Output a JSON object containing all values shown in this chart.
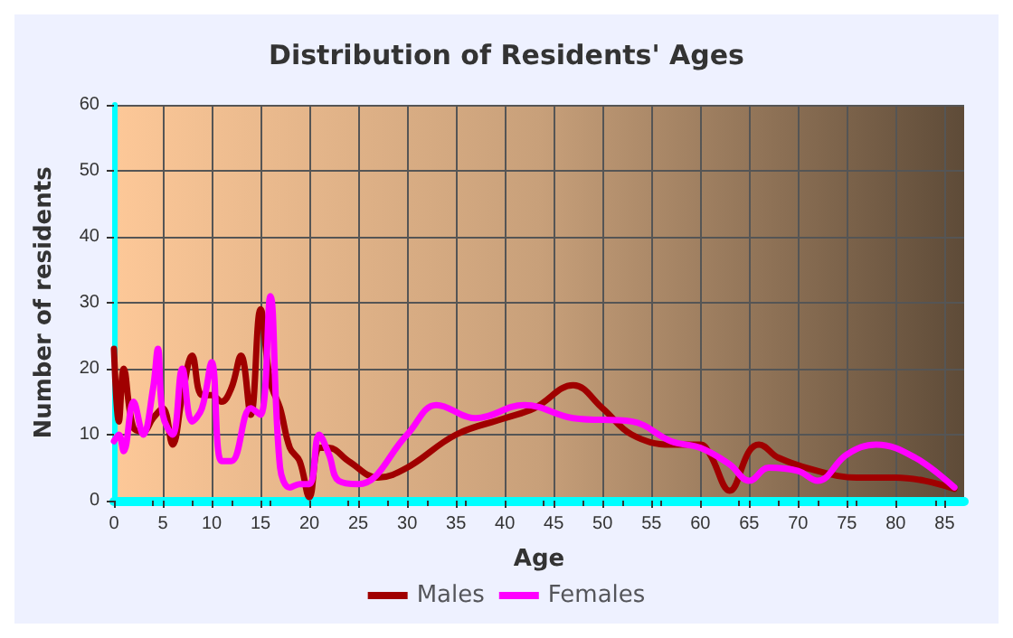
{
  "chart_data": {
    "type": "line",
    "title": "Distribution of Residents' Ages",
    "xlabel": "Age",
    "ylabel": "Number of residents",
    "xlim": [
      0,
      87
    ],
    "xticks": [
      0,
      5,
      10,
      15,
      20,
      25,
      30,
      35,
      40,
      45,
      50,
      55,
      60,
      65,
      70,
      75,
      80,
      85
    ],
    "ylim": [
      0,
      60
    ],
    "yticks": [
      0,
      10,
      20,
      30,
      40,
      50,
      60
    ],
    "grid": true,
    "legend": "bottom",
    "marker": "none",
    "line_style": "solid",
    "series": [
      {
        "name": "Males",
        "color": "#a00000",
        "x": [
          0,
          0.5,
          1,
          2,
          3,
          4,
          5,
          6,
          7,
          8,
          9,
          10,
          11,
          12,
          13,
          14,
          15,
          16,
          17,
          18,
          19,
          20,
          21,
          22,
          24,
          27,
          30,
          35,
          40,
          43,
          47,
          50,
          53,
          57,
          60,
          61,
          63,
          65,
          66,
          68,
          72,
          76,
          80,
          83,
          86
        ],
        "values": [
          23,
          12,
          20,
          11,
          10.5,
          12.5,
          14,
          8.5,
          16,
          22,
          16,
          16,
          15,
          17,
          22,
          13,
          29,
          18,
          14,
          8,
          6,
          0.5,
          8,
          8,
          6,
          3.5,
          5,
          10,
          12.5,
          14,
          17.5,
          14,
          10,
          8.5,
          8.5,
          7,
          1.5,
          7.5,
          8.5,
          6.5,
          4.5,
          3.5,
          3.5,
          3,
          1.8
        ]
      },
      {
        "name": "Females",
        "color": "#ff00ff",
        "x": [
          0,
          0.5,
          1,
          2,
          3,
          4,
          4.5,
          5,
          6,
          7,
          8,
          9,
          10,
          11,
          12,
          14,
          15,
          16,
          17,
          18,
          19,
          20,
          21,
          22,
          23,
          25,
          30,
          33,
          37,
          42,
          47,
          53,
          57,
          60,
          63,
          65,
          67,
          70,
          72,
          75,
          78,
          82,
          86
        ],
        "values": [
          9,
          10,
          7.5,
          15,
          10,
          17,
          23,
          13,
          10,
          20,
          12,
          14,
          21,
          6,
          6,
          14,
          13,
          31,
          5,
          2,
          2.5,
          2.5,
          10,
          7,
          3,
          2.5,
          10,
          14.5,
          12.5,
          14.5,
          12.5,
          12,
          9,
          8,
          5.5,
          3,
          5,
          4.5,
          3,
          7,
          8.5,
          6.5,
          2
        ]
      }
    ]
  }
}
